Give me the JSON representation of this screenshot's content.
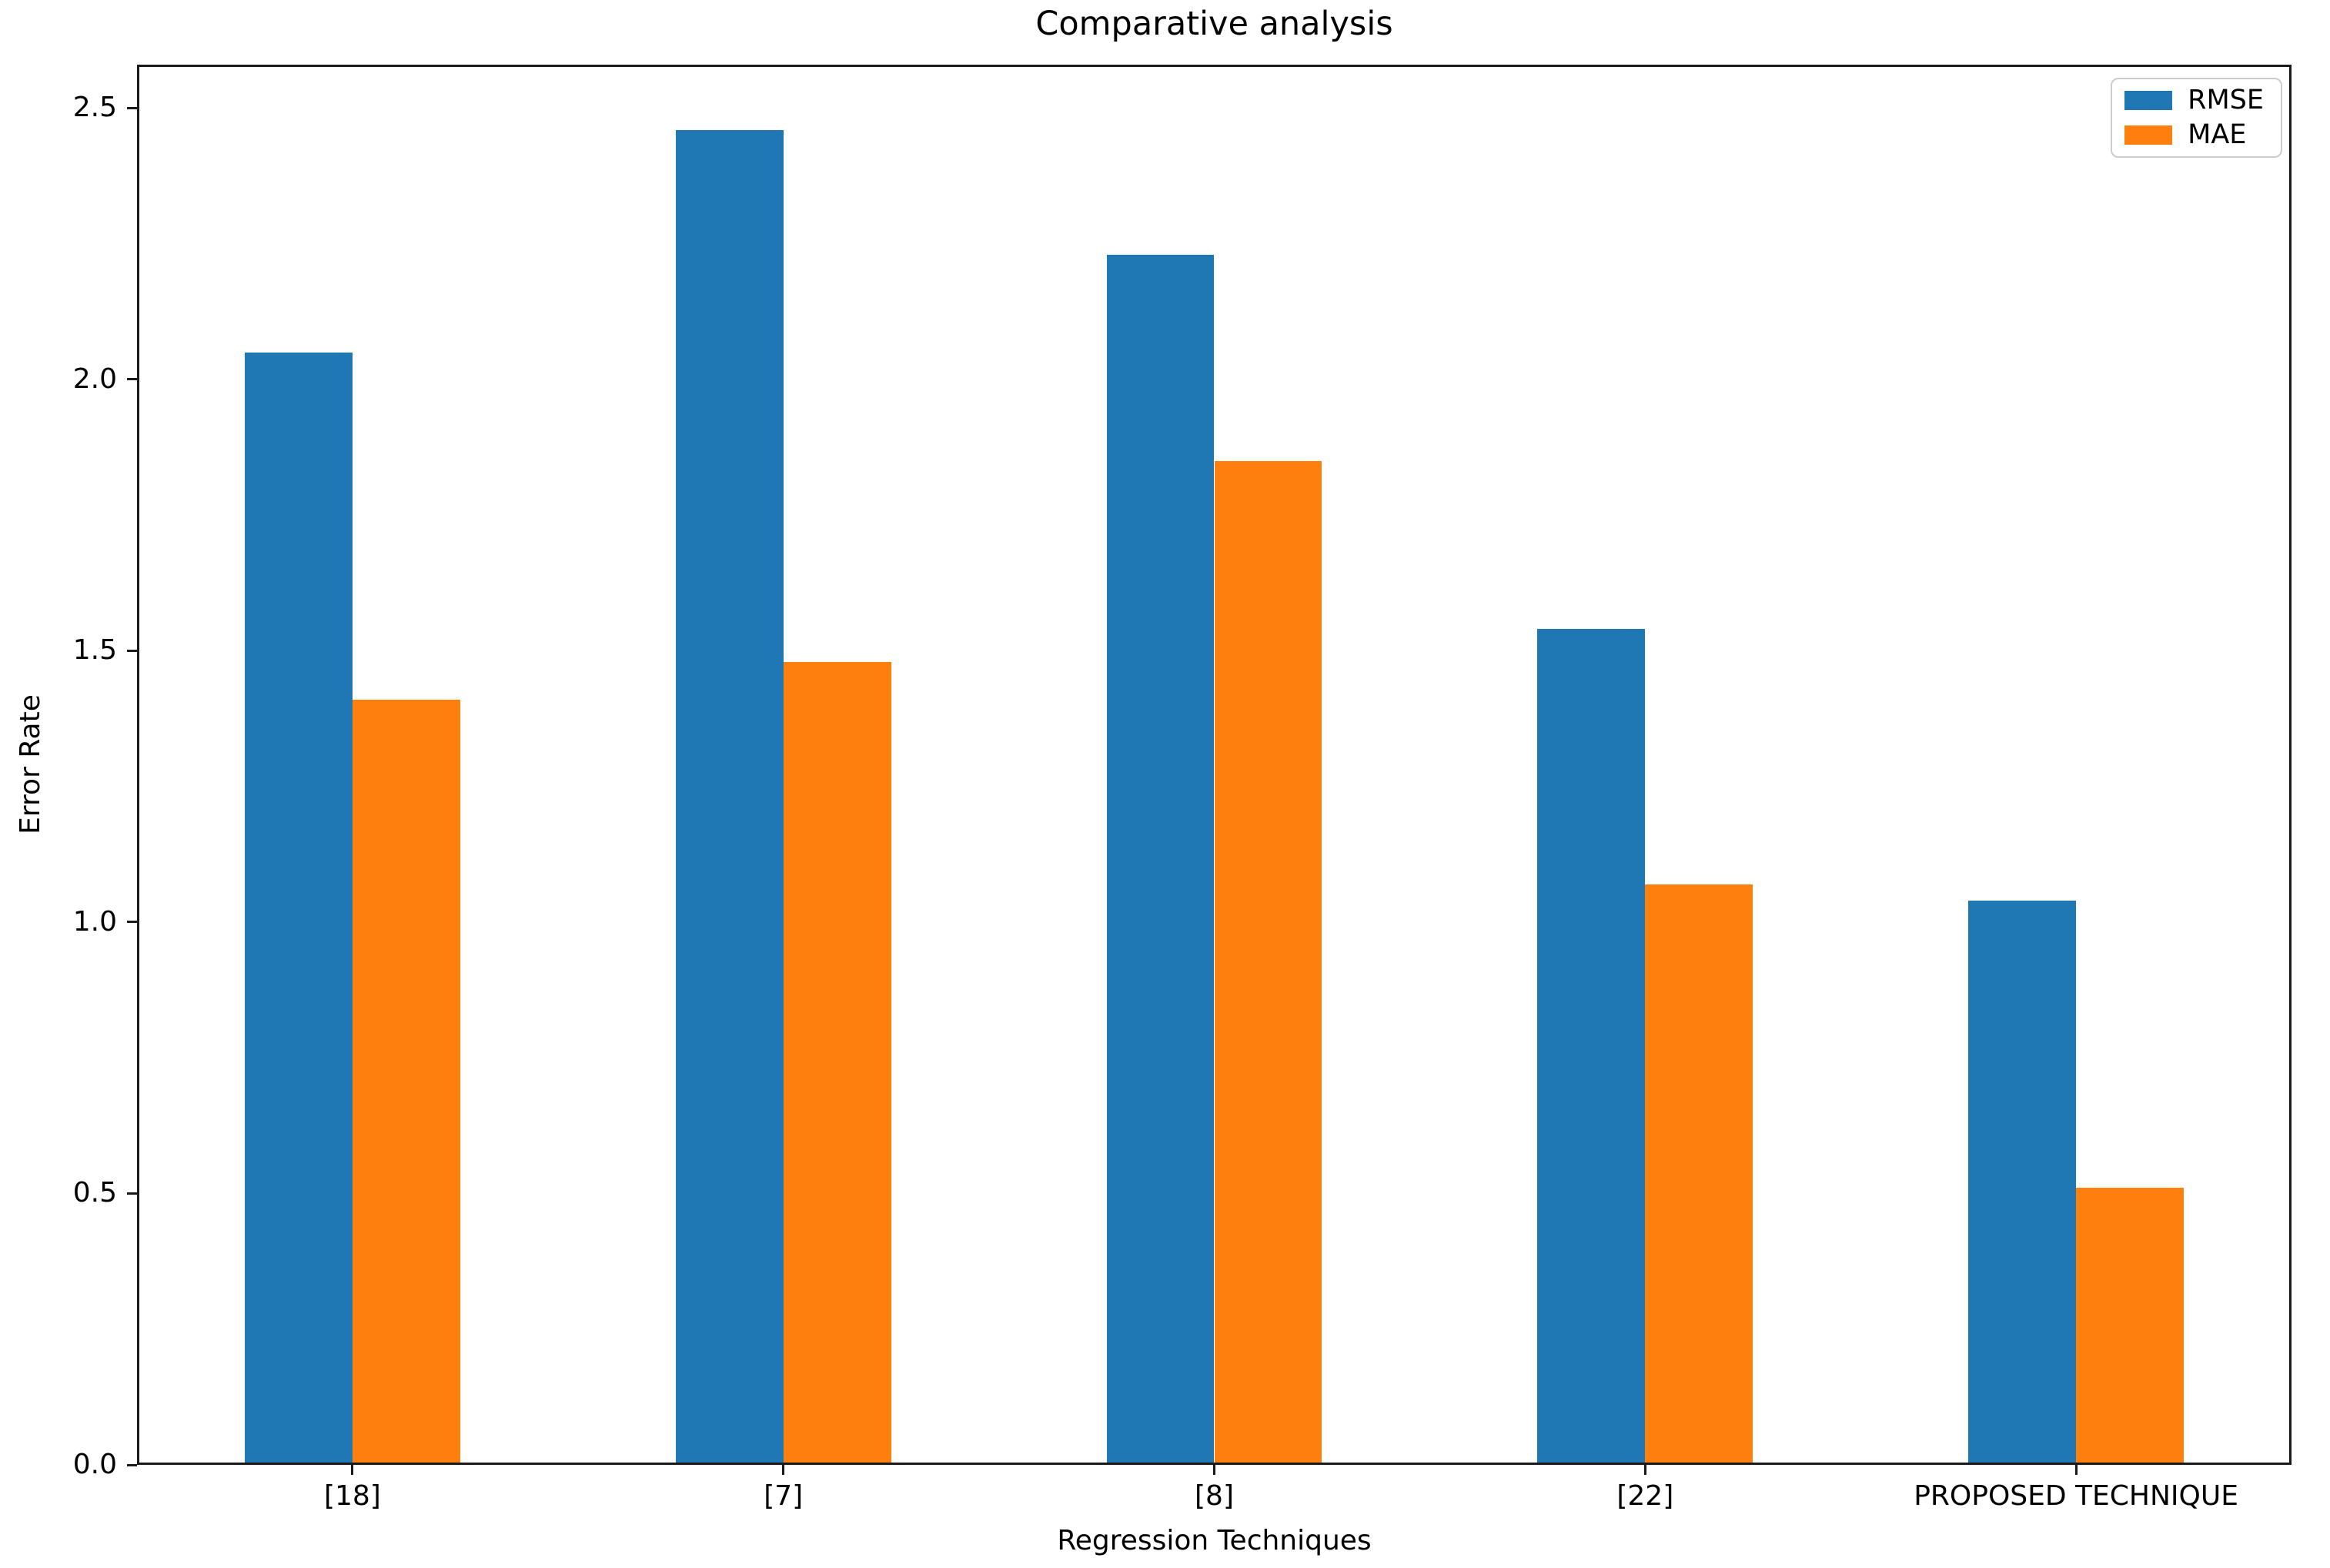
{
  "chart_data": {
    "type": "bar",
    "title": "Comparative analysis",
    "xlabel": "Regression Techniques",
    "ylabel": "Error Rate",
    "categories": [
      "[18]",
      "[7]",
      "[8]",
      "[22]",
      "PROPOSED TECHNIQUE"
    ],
    "series": [
      {
        "name": "RMSE",
        "color": "#1f77b4",
        "values": [
          2.05,
          2.46,
          2.23,
          1.54,
          1.04
        ]
      },
      {
        "name": "MAE",
        "color": "#ff7f0e",
        "values": [
          1.41,
          1.48,
          1.85,
          1.07,
          0.51
        ]
      }
    ],
    "yticks": [
      0.0,
      0.5,
      1.0,
      1.5,
      2.0,
      2.5
    ],
    "ytick_labels": [
      "0.0",
      "0.5",
      "1.0",
      "1.5",
      "2.0",
      "2.5"
    ],
    "ylim": [
      0,
      2.58
    ],
    "grid": false,
    "legend_position": "upper right",
    "background_color": "#ffffff",
    "spine_color": "#1a1a1a"
  }
}
